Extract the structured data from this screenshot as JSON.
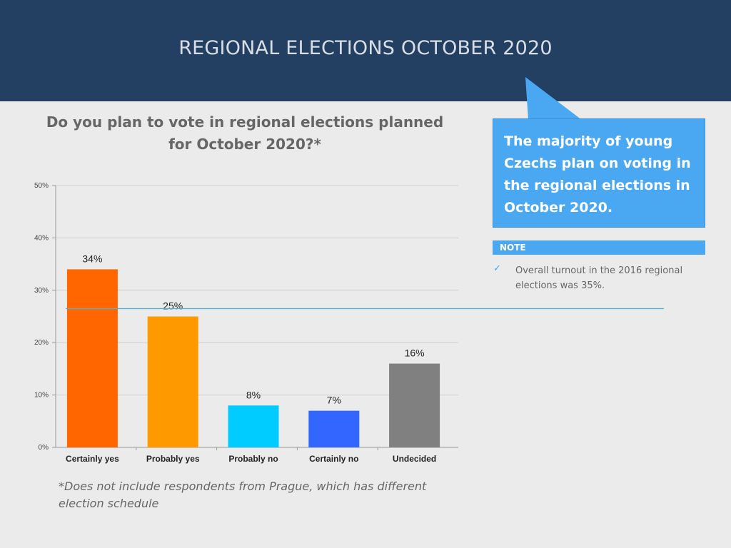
{
  "header": {
    "title": "REGIONAL ELECTIONS OCTOBER 2020"
  },
  "question": "Do you plan to vote in regional elections planned for October 2020?*",
  "callout": {
    "text": "The majority of young Czechs plan on voting in the regional elections in October 2020."
  },
  "note": {
    "label": "NOTE",
    "check_icon": "check-icon",
    "text": "Overall turnout in the 2016 regional elections was 35%."
  },
  "footnote": "*Does not include respondents from Prague, which has different election schedule",
  "colors": {
    "header_bg": "#233f61",
    "callout_bg": "#4aa7f1",
    "reference_line": "#4ab3d9"
  },
  "chart_data": {
    "type": "bar",
    "title": "",
    "categories": [
      "Certainly yes",
      "Probably yes",
      "Probably no",
      "Certainly no",
      "Undecided"
    ],
    "values": [
      34,
      25,
      8,
      7,
      16
    ],
    "value_labels": [
      "34%",
      "25%",
      "8%",
      "7%",
      "16%"
    ],
    "colors": [
      "#ff6600",
      "#ff9900",
      "#00ccff",
      "#3366ff",
      "#808080"
    ],
    "yticks": [
      "0%",
      "10%",
      "20%",
      "30%",
      "40%",
      "50%"
    ],
    "ylim": [
      0,
      50
    ],
    "grid": true,
    "reference_line": 26.5,
    "xlabel": "",
    "ylabel": ""
  }
}
